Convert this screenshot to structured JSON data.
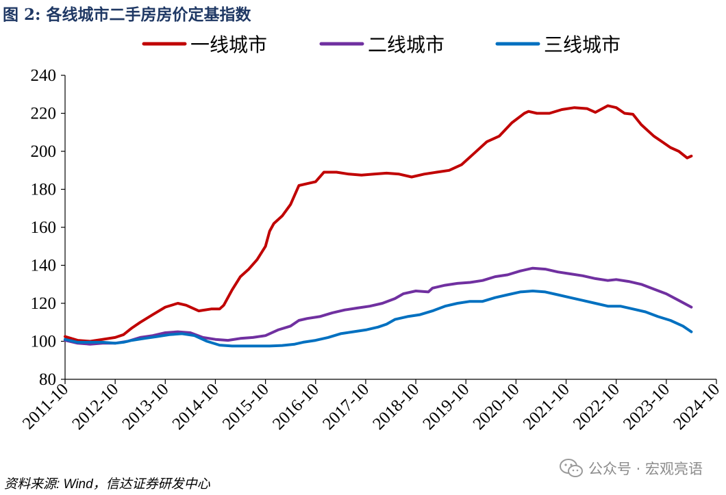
{
  "title": "图  2:  各线城市二手房房价定基指数",
  "source": "资料来源: Wind，信达证券研发中心",
  "watermark": "公众号 · 宏观亮语",
  "watermark_icon": "wechat-icon",
  "chart_data": {
    "type": "line",
    "title": "图  2:  各线城市二手房房价定基指数",
    "xlabel": "",
    "ylabel": "",
    "ylim": [
      80,
      240
    ],
    "yticks": [
      80,
      100,
      120,
      140,
      160,
      180,
      200,
      220,
      240
    ],
    "xticks": [
      "2011-10",
      "2012-10",
      "2013-10",
      "2014-10",
      "2015-10",
      "2016-10",
      "2017-10",
      "2018-10",
      "2019-10",
      "2020-10",
      "2021-10",
      "2022-10",
      "2023-10",
      "2024-10"
    ],
    "grid": false,
    "legend_position": "top",
    "x_start": "2011-10",
    "series": [
      {
        "name": "一线城市",
        "color": "#c00000",
        "values": [
          [
            0,
            102.5
          ],
          [
            3,
            100.5
          ],
          [
            6,
            100
          ],
          [
            9,
            101
          ],
          [
            12,
            102
          ],
          [
            14,
            103.5
          ],
          [
            16,
            107
          ],
          [
            18,
            110
          ],
          [
            21,
            114
          ],
          [
            24,
            118
          ],
          [
            27,
            120
          ],
          [
            29,
            119
          ],
          [
            32,
            116
          ],
          [
            35,
            117
          ],
          [
            37,
            117
          ],
          [
            38,
            119
          ],
          [
            40,
            127
          ],
          [
            42,
            134
          ],
          [
            44,
            138
          ],
          [
            46,
            143
          ],
          [
            48,
            150
          ],
          [
            49,
            158
          ],
          [
            50,
            162
          ],
          [
            52,
            166
          ],
          [
            54,
            172
          ],
          [
            56,
            182
          ],
          [
            58,
            183
          ],
          [
            60,
            184
          ],
          [
            62,
            189
          ],
          [
            65,
            189
          ],
          [
            68,
            188
          ],
          [
            71,
            187.5
          ],
          [
            74,
            188
          ],
          [
            77,
            188.5
          ],
          [
            80,
            188
          ],
          [
            83,
            186.5
          ],
          [
            86,
            188
          ],
          [
            89,
            189
          ],
          [
            92,
            190
          ],
          [
            95,
            193
          ],
          [
            98,
            199
          ],
          [
            101,
            205
          ],
          [
            104,
            208
          ],
          [
            107,
            215
          ],
          [
            110,
            220
          ],
          [
            111,
            221
          ],
          [
            113,
            220
          ],
          [
            116,
            220
          ],
          [
            119,
            222
          ],
          [
            122,
            223
          ],
          [
            125,
            222.5
          ],
          [
            127,
            220.5
          ],
          [
            130,
            224
          ],
          [
            132,
            223
          ],
          [
            134,
            220
          ],
          [
            136,
            219.5
          ],
          [
            138,
            214
          ],
          [
            141,
            208
          ],
          [
            143,
            205
          ],
          [
            145,
            202
          ],
          [
            147,
            200
          ],
          [
            149,
            196.5
          ],
          [
            150,
            197.5
          ]
        ]
      },
      {
        "name": "二线城市",
        "color": "#7030a0",
        "values": [
          [
            0,
            100.5
          ],
          [
            3,
            99
          ],
          [
            6,
            98.5
          ],
          [
            9,
            99
          ],
          [
            12,
            99
          ],
          [
            15,
            100
          ],
          [
            18,
            102
          ],
          [
            21,
            103
          ],
          [
            24,
            104.5
          ],
          [
            27,
            105
          ],
          [
            30,
            104.5
          ],
          [
            33,
            102
          ],
          [
            36,
            101
          ],
          [
            39,
            100.5
          ],
          [
            42,
            101.5
          ],
          [
            45,
            102
          ],
          [
            48,
            103
          ],
          [
            51,
            106
          ],
          [
            54,
            108
          ],
          [
            56,
            111
          ],
          [
            58,
            112
          ],
          [
            61,
            113
          ],
          [
            64,
            115
          ],
          [
            67,
            116.5
          ],
          [
            70,
            117.5
          ],
          [
            73,
            118.5
          ],
          [
            76,
            120
          ],
          [
            79,
            122.5
          ],
          [
            81,
            125
          ],
          [
            84,
            126.5
          ],
          [
            87,
            126
          ],
          [
            88,
            128
          ],
          [
            91,
            129.5
          ],
          [
            94,
            130.5
          ],
          [
            97,
            131
          ],
          [
            100,
            132
          ],
          [
            103,
            134
          ],
          [
            106,
            135
          ],
          [
            109,
            137
          ],
          [
            112,
            138.5
          ],
          [
            115,
            138
          ],
          [
            118,
            136.5
          ],
          [
            121,
            135.5
          ],
          [
            124,
            134.5
          ],
          [
            127,
            133
          ],
          [
            130,
            132
          ],
          [
            132,
            132.5
          ],
          [
            135,
            131.5
          ],
          [
            138,
            130
          ],
          [
            141,
            127.5
          ],
          [
            144,
            125
          ],
          [
            147,
            121.5
          ],
          [
            150,
            118
          ]
        ]
      },
      {
        "name": "三线城市",
        "color": "#0070c0",
        "values": [
          [
            0,
            101
          ],
          [
            3,
            99.5
          ],
          [
            6,
            99.5
          ],
          [
            9,
            99.5
          ],
          [
            12,
            99
          ],
          [
            14,
            99.5
          ],
          [
            16,
            100.5
          ],
          [
            19,
            101.5
          ],
          [
            22,
            102.5
          ],
          [
            25,
            103.5
          ],
          [
            28,
            104
          ],
          [
            31,
            103
          ],
          [
            34,
            100
          ],
          [
            37,
            98
          ],
          [
            40,
            97.5
          ],
          [
            43,
            97.5
          ],
          [
            46,
            97.5
          ],
          [
            49,
            97.5
          ],
          [
            52,
            97.8
          ],
          [
            55,
            98.5
          ],
          [
            57,
            99.5
          ],
          [
            60,
            100.5
          ],
          [
            63,
            102
          ],
          [
            66,
            104
          ],
          [
            69,
            105
          ],
          [
            72,
            106
          ],
          [
            75,
            107.5
          ],
          [
            77,
            109
          ],
          [
            79,
            111.5
          ],
          [
            82,
            113
          ],
          [
            85,
            114
          ],
          [
            88,
            116
          ],
          [
            91,
            118.5
          ],
          [
            94,
            120
          ],
          [
            97,
            121
          ],
          [
            100,
            121
          ],
          [
            103,
            123
          ],
          [
            106,
            124.5
          ],
          [
            109,
            126
          ],
          [
            112,
            126.5
          ],
          [
            115,
            126
          ],
          [
            118,
            124.5
          ],
          [
            121,
            123
          ],
          [
            124,
            121.5
          ],
          [
            127,
            120
          ],
          [
            130,
            118.5
          ],
          [
            133,
            118.5
          ],
          [
            136,
            117
          ],
          [
            139,
            115.5
          ],
          [
            142,
            113
          ],
          [
            145,
            111
          ],
          [
            148,
            108
          ],
          [
            150,
            105
          ]
        ]
      }
    ]
  }
}
